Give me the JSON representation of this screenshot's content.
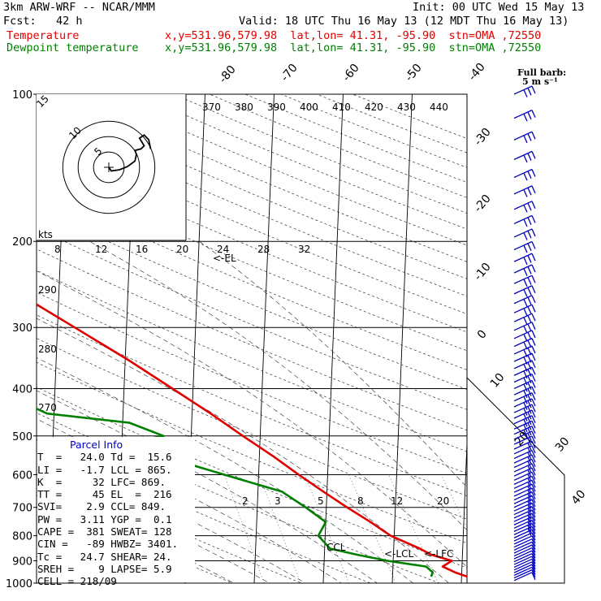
{
  "header": {
    "model": "3km ARW-WRF -- NCAR/MMM",
    "init": "Init: 00 UTC Wed 15 May 13",
    "fcst": "Fcst:   42 h",
    "valid": "Valid: 18 UTC Thu 16 May 13 (12 MDT Thu 16 May 13)",
    "temp_label": "Temperature",
    "temp_info": "x,y=531.96,579.98  lat,lon= 41.31, -95.90  stn=OMA ,72550",
    "dew_label": "Dewpoint temperature",
    "dew_info": "x,y=531.96,579.98  lat,lon= 41.31, -95.90  stn=OMA ,72550"
  },
  "barb_label": "Full barb:",
  "barb_unit": "5 m s⁻¹",
  "hodograph": {
    "unit_label": "kts",
    "ring_labels": [
      "5",
      "10",
      "15"
    ],
    "speed_ticks": [
      "8",
      "12",
      "16",
      "20",
      "24",
      "28",
      "32"
    ]
  },
  "theta_labels": [
    "370",
    "380",
    "390",
    "400",
    "410",
    "420",
    "430",
    "440"
  ],
  "left_theta_labels": [
    "290",
    "280",
    "270"
  ],
  "mixing_ratio_labels": [
    "2",
    "3",
    "5",
    "8",
    "12",
    "20"
  ],
  "isotherm_labels": [
    "-80",
    "-70",
    "-60",
    "-50",
    "-40",
    "-30",
    "-20",
    "-10",
    "0",
    "10",
    "20",
    "30",
    "40"
  ],
  "annotations": {
    "el": "<-EL",
    "lcl": "<-LCL",
    "lfc": "<-LFC",
    "ccl": "CCL"
  },
  "parcel_info": {
    "title": "Parcel Info",
    "rows": [
      "T  =   24.0 Td =  15.6",
      "LI =   -1.7 LCL = 865.",
      "K  =     32 LFC= 869.",
      "TT =     45 EL  =  216",
      "SVI=    2.9 CCL= 849.",
      "PW =   3.11 YGP =  0.1",
      "CAPE =  381 SWEAT= 128",
      "CIN =   -89 HWBZ= 3401.",
      "Tc =   24.7 SHEAR= 24.",
      "SREH =    9 LAPSE= 5.9",
      "CELL = 218/09"
    ]
  },
  "colors": {
    "temperature": "#e00000",
    "dewpoint": "#008000",
    "barbs": "#0000c0"
  },
  "chart_data": {
    "type": "line",
    "title": "",
    "xlabel": "",
    "ylabel": "",
    "y_scale": "log-pressure",
    "ylim": [
      1000,
      100
    ],
    "pressure_ticks": [
      100,
      200,
      300,
      400,
      500,
      600,
      700,
      800,
      900,
      1000
    ],
    "series": [
      {
        "name": "Temperature",
        "points": [
          [
            1000,
            24.0
          ],
          [
            975,
            21.3
          ],
          [
            950,
            19.0
          ],
          [
            925,
            17.2
          ],
          [
            900,
            18.5
          ],
          [
            875,
            15.5
          ],
          [
            850,
            13.8
          ],
          [
            800,
            9.5
          ],
          [
            750,
            6.5
          ],
          [
            700,
            3.0
          ],
          [
            650,
            -0.5
          ],
          [
            600,
            -4.2
          ],
          [
            550,
            -8.0
          ],
          [
            500,
            -12.5
          ],
          [
            450,
            -17.3
          ],
          [
            400,
            -23.0
          ],
          [
            350,
            -29.5
          ],
          [
            300,
            -37.5
          ],
          [
            250,
            -47.0
          ],
          [
            225,
            -52.0
          ],
          [
            200,
            -57.0
          ],
          [
            175,
            -59.5
          ],
          [
            150,
            -61.5
          ],
          [
            125,
            -64.0
          ],
          [
            100,
            -67.0
          ]
        ]
      },
      {
        "name": "Dewpoint temperature",
        "points": [
          [
            970,
            15.6
          ],
          [
            950,
            15.8
          ],
          [
            925,
            14.8
          ],
          [
            900,
            9.2
          ],
          [
            875,
            4.8
          ],
          [
            850,
            0.8
          ],
          [
            800,
            -1.0
          ],
          [
            750,
            0.0
          ],
          [
            700,
            -3.0
          ],
          [
            650,
            -6.5
          ],
          [
            600,
            -15.0
          ],
          [
            550,
            -24.0
          ],
          [
            520,
            -30.0
          ],
          [
            500,
            -24.0
          ],
          [
            470,
            -29.0
          ],
          [
            450,
            -41.0
          ],
          [
            400,
            -49.0
          ],
          [
            380,
            -50.0
          ],
          [
            350,
            -45.0
          ],
          [
            300,
            -47.0
          ],
          [
            250,
            -51.5
          ],
          [
            225,
            -60.0
          ],
          [
            200,
            -67.5
          ],
          [
            175,
            -70.0
          ],
          [
            150,
            -74.0
          ],
          [
            125,
            -78.0
          ],
          [
            100,
            -80.0
          ]
        ]
      }
    ],
    "hodograph": [
      [
        0.0,
        0.0
      ],
      [
        0.8,
        -1.2
      ],
      [
        3.5,
        -0.8
      ],
      [
        6.0,
        0.2
      ],
      [
        8.5,
        2.0
      ],
      [
        9.0,
        4.2
      ],
      [
        8.5,
        5.5
      ],
      [
        10.5,
        6.0
      ],
      [
        11.5,
        7.0
      ],
      [
        10.0,
        9.5
      ],
      [
        11.5,
        10.5
      ],
      [
        13.0,
        9.0
      ],
      [
        13.6,
        6.0
      ]
    ]
  }
}
